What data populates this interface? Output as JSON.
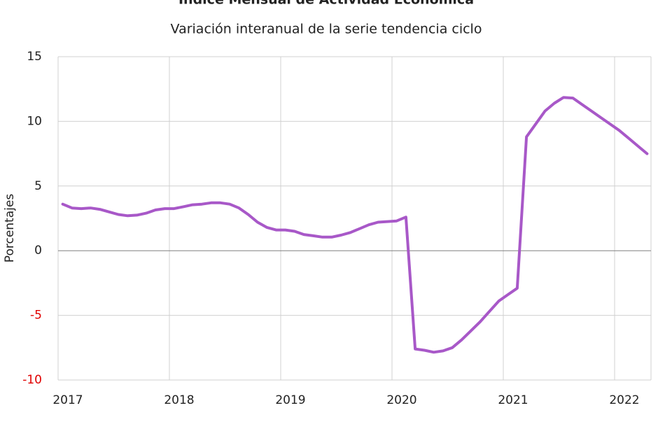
{
  "chart_data": {
    "type": "line",
    "title": "Índice Mensual de  Actividad Económica",
    "subtitle": "Variación interanual de la serie tendencia ciclo",
    "ylabel": "Porcentajes",
    "categories": [
      "2017",
      null,
      null,
      null,
      null,
      null,
      null,
      null,
      null,
      null,
      null,
      null,
      "2018",
      null,
      null,
      null,
      null,
      null,
      null,
      null,
      null,
      null,
      null,
      null,
      "2019",
      null,
      null,
      null,
      null,
      null,
      null,
      null,
      null,
      null,
      null,
      null,
      "2020",
      null,
      null,
      null,
      null,
      null,
      null,
      null,
      null,
      null,
      null,
      null,
      "2021",
      null,
      null,
      null,
      null,
      null,
      null,
      null,
      null,
      null,
      null,
      null,
      "2022",
      null,
      null,
      null
    ],
    "series": [
      {
        "name": "Porcentajes",
        "color": "#a858c8",
        "values": [
          3.6,
          3.3,
          3.25,
          3.3,
          3.2,
          3.0,
          2.8,
          2.7,
          2.75,
          2.9,
          3.15,
          3.25,
          3.25,
          3.4,
          3.55,
          3.6,
          3.7,
          3.7,
          3.6,
          3.3,
          2.8,
          2.2,
          1.8,
          1.6,
          1.6,
          1.5,
          1.25,
          1.15,
          1.05,
          1.05,
          1.2,
          1.4,
          1.7,
          2.0,
          2.2,
          2.25,
          2.3,
          2.6,
          -7.6,
          -7.7,
          -7.85,
          -7.75,
          -7.5,
          -6.9,
          -6.2,
          -5.5,
          -4.7,
          -3.9,
          -3.4,
          -2.9,
          8.8,
          9.8,
          10.8,
          11.4,
          11.85,
          11.8,
          11.3,
          10.8,
          10.3,
          9.8,
          9.3,
          8.7,
          8.1,
          7.5
        ]
      }
    ],
    "ylim": [
      -10,
      15
    ],
    "yticks": [
      -10,
      -5,
      0,
      5,
      10,
      15
    ],
    "grid": true,
    "negative_tick_color": "#e00000"
  }
}
